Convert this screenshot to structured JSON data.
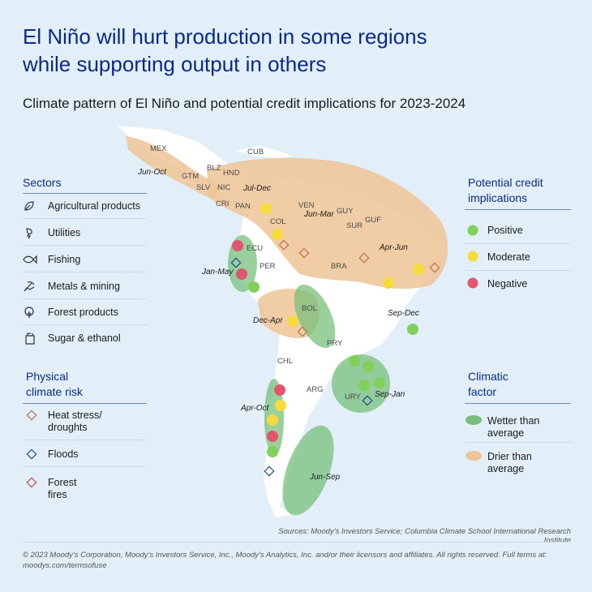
{
  "title": {
    "line1": "El Niño will hurt production in some regions",
    "line2": "while supporting output in others"
  },
  "subtitle": "Climate pattern of El Niño and potential credit implications for 2023-2024",
  "sectors": {
    "heading": "Sectors",
    "items": [
      {
        "label": "Agricultural products",
        "icon": "leaf-icon"
      },
      {
        "label": "Utilities",
        "icon": "lightning-icon"
      },
      {
        "label": "Fishing",
        "icon": "fish-icon"
      },
      {
        "label": "Metals & mining",
        "icon": "pickaxe-icon"
      },
      {
        "label": "Forest products",
        "icon": "tree-icon"
      },
      {
        "label": "Sugar & ethanol",
        "icon": "jar-icon"
      }
    ]
  },
  "physical_risk": {
    "heading_line1": "Physical",
    "heading_line2": "climate risk",
    "items": [
      {
        "line1": "Heat stress/",
        "line2": "droughts",
        "color": "#b9744c"
      },
      {
        "line1": "Floods",
        "line2": "",
        "color": "#1f4f8a"
      },
      {
        "line1": "Forest",
        "line2": "fires",
        "color": "#d0483f"
      }
    ]
  },
  "credit": {
    "heading_line1": "Potential credit",
    "heading_line2": "implications",
    "items": [
      {
        "label": "Positive",
        "color": "#80d05a"
      },
      {
        "label": "Moderate",
        "color": "#f5dc3c"
      },
      {
        "label": "Negative",
        "color": "#e0566f"
      }
    ]
  },
  "climatic": {
    "heading_line1": "Climatic",
    "heading_line2": "factor",
    "items": [
      {
        "line1": "Wetter than",
        "line2": "average",
        "color": "#77c07b"
      },
      {
        "line1": "Drier than",
        "line2": "average",
        "color": "#efc497"
      }
    ]
  },
  "map": {
    "countries": [
      "MEX",
      "CUB",
      "BLZ",
      "GTM",
      "HND",
      "SLV",
      "NIC",
      "CRI",
      "PAN",
      "VEN",
      "GUY",
      "SUR",
      "GUF",
      "COL",
      "ECU",
      "PER",
      "BRA",
      "BOL",
      "PRY",
      "CHL",
      "ARG",
      "URY"
    ],
    "periods": [
      "Jun-Oct",
      "Jul-Dec",
      "Jun-Mar",
      "Apr-Jun",
      "Jan-May",
      "Dec-Apr",
      "Sep-Dec",
      "Sep-Jan",
      "Apr-Oct",
      "Jun-Sep"
    ]
  },
  "source": "Sources: Moody's Investors Service; Columbia Climate School International Research Institute",
  "copyright": "© 2023 Moody's Corporation, Moody's Investors Service, Inc., Moody's Analytics, Inc. and/or their licensors and affiliates. All rights reserved. Full terms at: moodys.com/termsofuse"
}
